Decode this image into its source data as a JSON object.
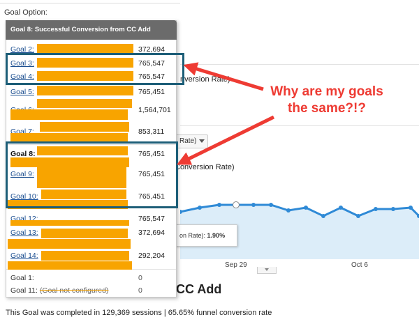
{
  "goal_option_label": "Goal Option:",
  "dropdown": {
    "selected": "Goal 8: Successful Conversion from CC Add",
    "items": [
      {
        "label": "Goal 2:",
        "value": "372,694",
        "style": "link"
      },
      {
        "label": "Goal 3:",
        "value": "765,547",
        "style": "link"
      },
      {
        "label": "Goal 4:",
        "value": "765,547",
        "style": "link"
      },
      {
        "label": "Goal 5:",
        "value": "765,451",
        "style": "link"
      },
      {
        "label": "Goal 6:",
        "value": "1,564,701",
        "style": "link"
      },
      {
        "label": "Goal 7:",
        "value": "853,311",
        "style": "link"
      },
      {
        "label": "Goal 8:",
        "value": "765,451",
        "style": "bold"
      },
      {
        "label": "Goal 9:",
        "value": "765,451",
        "style": "link"
      },
      {
        "label": "Goal 10:",
        "value": "765,451",
        "style": "link"
      },
      {
        "label": "Goal 12:",
        "value": "765,547",
        "style": "link"
      },
      {
        "label": "Goal 13:",
        "value": "372,694",
        "style": "link"
      },
      {
        "label": "Goal 14:",
        "value": "292,204",
        "style": "link"
      },
      {
        "label": "Goal 1:",
        "value": "0",
        "style": "plain"
      },
      {
        "label": "Goal 11:",
        "value": "0",
        "style": "plain",
        "note": "(Goal not configured)"
      }
    ]
  },
  "background": {
    "metric_partial_1": "nversion Rate)",
    "metric_selector_partial": "Rate)",
    "metric_partial_2": "Conversion Rate)",
    "tooltip_label": "on Rate):",
    "tooltip_value": "1.90%",
    "x_labels": [
      "Sep 29",
      "Oct 6"
    ],
    "heading_partial": "CC Add",
    "summary": "This Goal was completed in 129,369 sessions | 65.65% funnel conversion rate"
  },
  "annotation": {
    "line1": "Why are my goals",
    "line2": "the same?!?",
    "color": "#ee3b33",
    "box_color": "#1d5e78"
  },
  "colors": {
    "redaction": "#f8a400",
    "chart_line": "#2f8ad6",
    "chart_fill": "#dcedf9",
    "link": "#1a4d8f"
  }
}
